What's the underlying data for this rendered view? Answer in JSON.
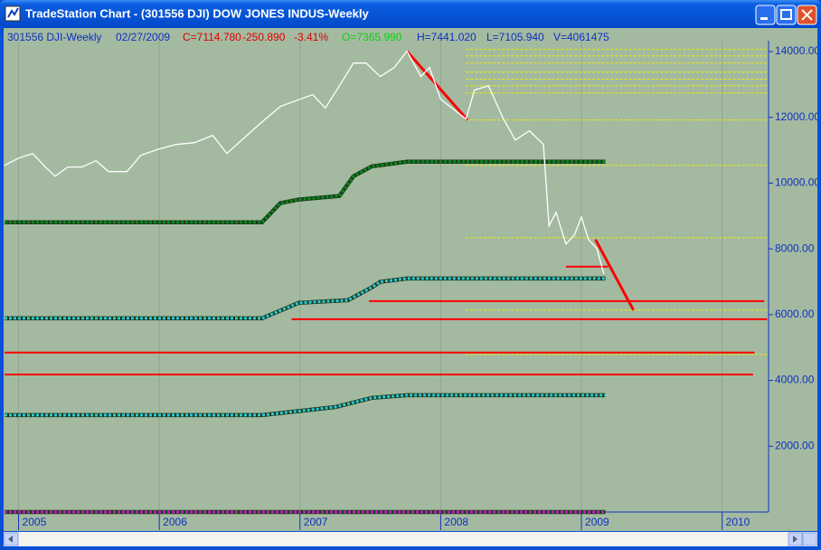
{
  "window": {
    "title": "TradeStation Chart - (301556 DJI) DOW JONES INDUS-Weekly"
  },
  "header": {
    "symbol": "301556 DJI-Weekly",
    "date": "02/27/2009",
    "close": "C=7114.780",
    "change": "-250.890",
    "change_pct": "-3.41%",
    "open": "O=7365.990",
    "high": "H=7441.020",
    "low": "L=7105.940",
    "volume": "V=4061475"
  },
  "chart_data": {
    "type": "line",
    "xlim": [
      2004.9,
      2010.33
    ],
    "xticks": [
      2005,
      2006,
      2007,
      2008,
      2009,
      2010
    ],
    "ylim": [
      0,
      14330
    ],
    "yticks": [
      {
        "value": 2000,
        "label": "2000.00"
      },
      {
        "value": 4000,
        "label": "4000.00"
      },
      {
        "value": 6000,
        "label": "6000.00"
      },
      {
        "value": 8000,
        "label": "8000.00"
      },
      {
        "value": 10000,
        "label": "10000.00"
      },
      {
        "value": 12000,
        "label": "12000.00"
      },
      {
        "value": 14000,
        "label": "14000.00"
      }
    ],
    "grid": true,
    "series": [
      {
        "style": "line",
        "color": "#ffffff",
        "x": [
          2004.9,
          2005.0,
          2005.1,
          2005.19,
          2005.26,
          2005.35,
          2005.45,
          2005.55,
          2005.64,
          2005.77,
          2005.87,
          2006.0,
          2006.12,
          2006.25,
          2006.38,
          2006.48,
          2006.61,
          2006.73,
          2006.86,
          2007.0,
          2007.09,
          2007.18,
          2007.28,
          2007.38,
          2007.47,
          2007.57,
          2007.67,
          2007.76,
          2007.86,
          2007.92,
          2008.0,
          2008.08,
          2008.18,
          2008.24,
          2008.34,
          2008.44,
          2008.53,
          2008.63,
          2008.73,
          2008.77,
          2008.82,
          2008.89,
          2008.95,
          2009.0,
          2009.05,
          2009.11,
          2009.16
        ],
        "values": [
          10540,
          10760,
          10900,
          10490,
          10210,
          10490,
          10490,
          10680,
          10350,
          10350,
          10850,
          11040,
          11175,
          11230,
          11450,
          10900,
          11400,
          11860,
          12330,
          12550,
          12690,
          12280,
          12960,
          13650,
          13650,
          13240,
          13515,
          14010,
          13240,
          13515,
          12550,
          12280,
          11950,
          12830,
          12960,
          12000,
          11310,
          11590,
          11175,
          8700,
          9110,
          8150,
          8420,
          8970,
          8285,
          8010,
          7240
        ]
      },
      {
        "style": "dots",
        "color": "#0a8a1e",
        "x": [
          2004.9,
          2006.73,
          2006.86,
          2006.99,
          2007.28,
          2007.38,
          2007.51,
          2007.76,
          2009.17
        ],
        "values": [
          8810,
          8810,
          9390,
          9500,
          9610,
          10210,
          10510,
          10650,
          10650
        ]
      },
      {
        "style": "dots",
        "color": "#2ec8d8",
        "x": [
          2004.9,
          2006.73,
          2006.99,
          2007.34,
          2007.51,
          2007.57,
          2007.76,
          2009.17
        ],
        "values": [
          5890,
          5890,
          6360,
          6440,
          6830,
          7000,
          7100,
          7100
        ]
      },
      {
        "style": "dots",
        "color": "#2ec8d8",
        "x": [
          2004.9,
          2006.73,
          2007.25,
          2007.51,
          2007.76,
          2009.17
        ],
        "values": [
          2945,
          2945,
          3190,
          3470,
          3550,
          3550
        ]
      },
      {
        "style": "dots",
        "color": "#c020c0",
        "x": [
          2004.9,
          2009.17
        ],
        "values": [
          0,
          0
        ]
      }
    ],
    "trendlines": {
      "color": "#ff0000",
      "lines": [
        {
          "x": [
            2007.76,
            2008.19
          ],
          "values": [
            14010,
            11920
          ]
        },
        {
          "x": [
            2009.1,
            2009.37
          ],
          "values": [
            8285,
            6140
          ]
        },
        {
          "x": [
            2008.89,
            2009.19
          ],
          "values": [
            7460,
            7460
          ]
        },
        {
          "x": [
            2007.49,
            2010.3
          ],
          "values": [
            6410,
            6410
          ]
        },
        {
          "x": [
            2006.94,
            2010.32
          ],
          "values": [
            5860,
            5860
          ]
        },
        {
          "x": [
            2004.9,
            2010.23
          ],
          "values": [
            4845,
            4845
          ]
        },
        {
          "x": [
            2004.9,
            2010.22
          ],
          "values": [
            4180,
            4180
          ]
        }
      ]
    },
    "levels": {
      "color": "#f0f000",
      "start": 2008.18,
      "values": [
        14065,
        13870,
        13650,
        13375,
        13160,
        12960,
        12740,
        11920,
        10540,
        8340,
        6140,
        4790
      ]
    }
  }
}
